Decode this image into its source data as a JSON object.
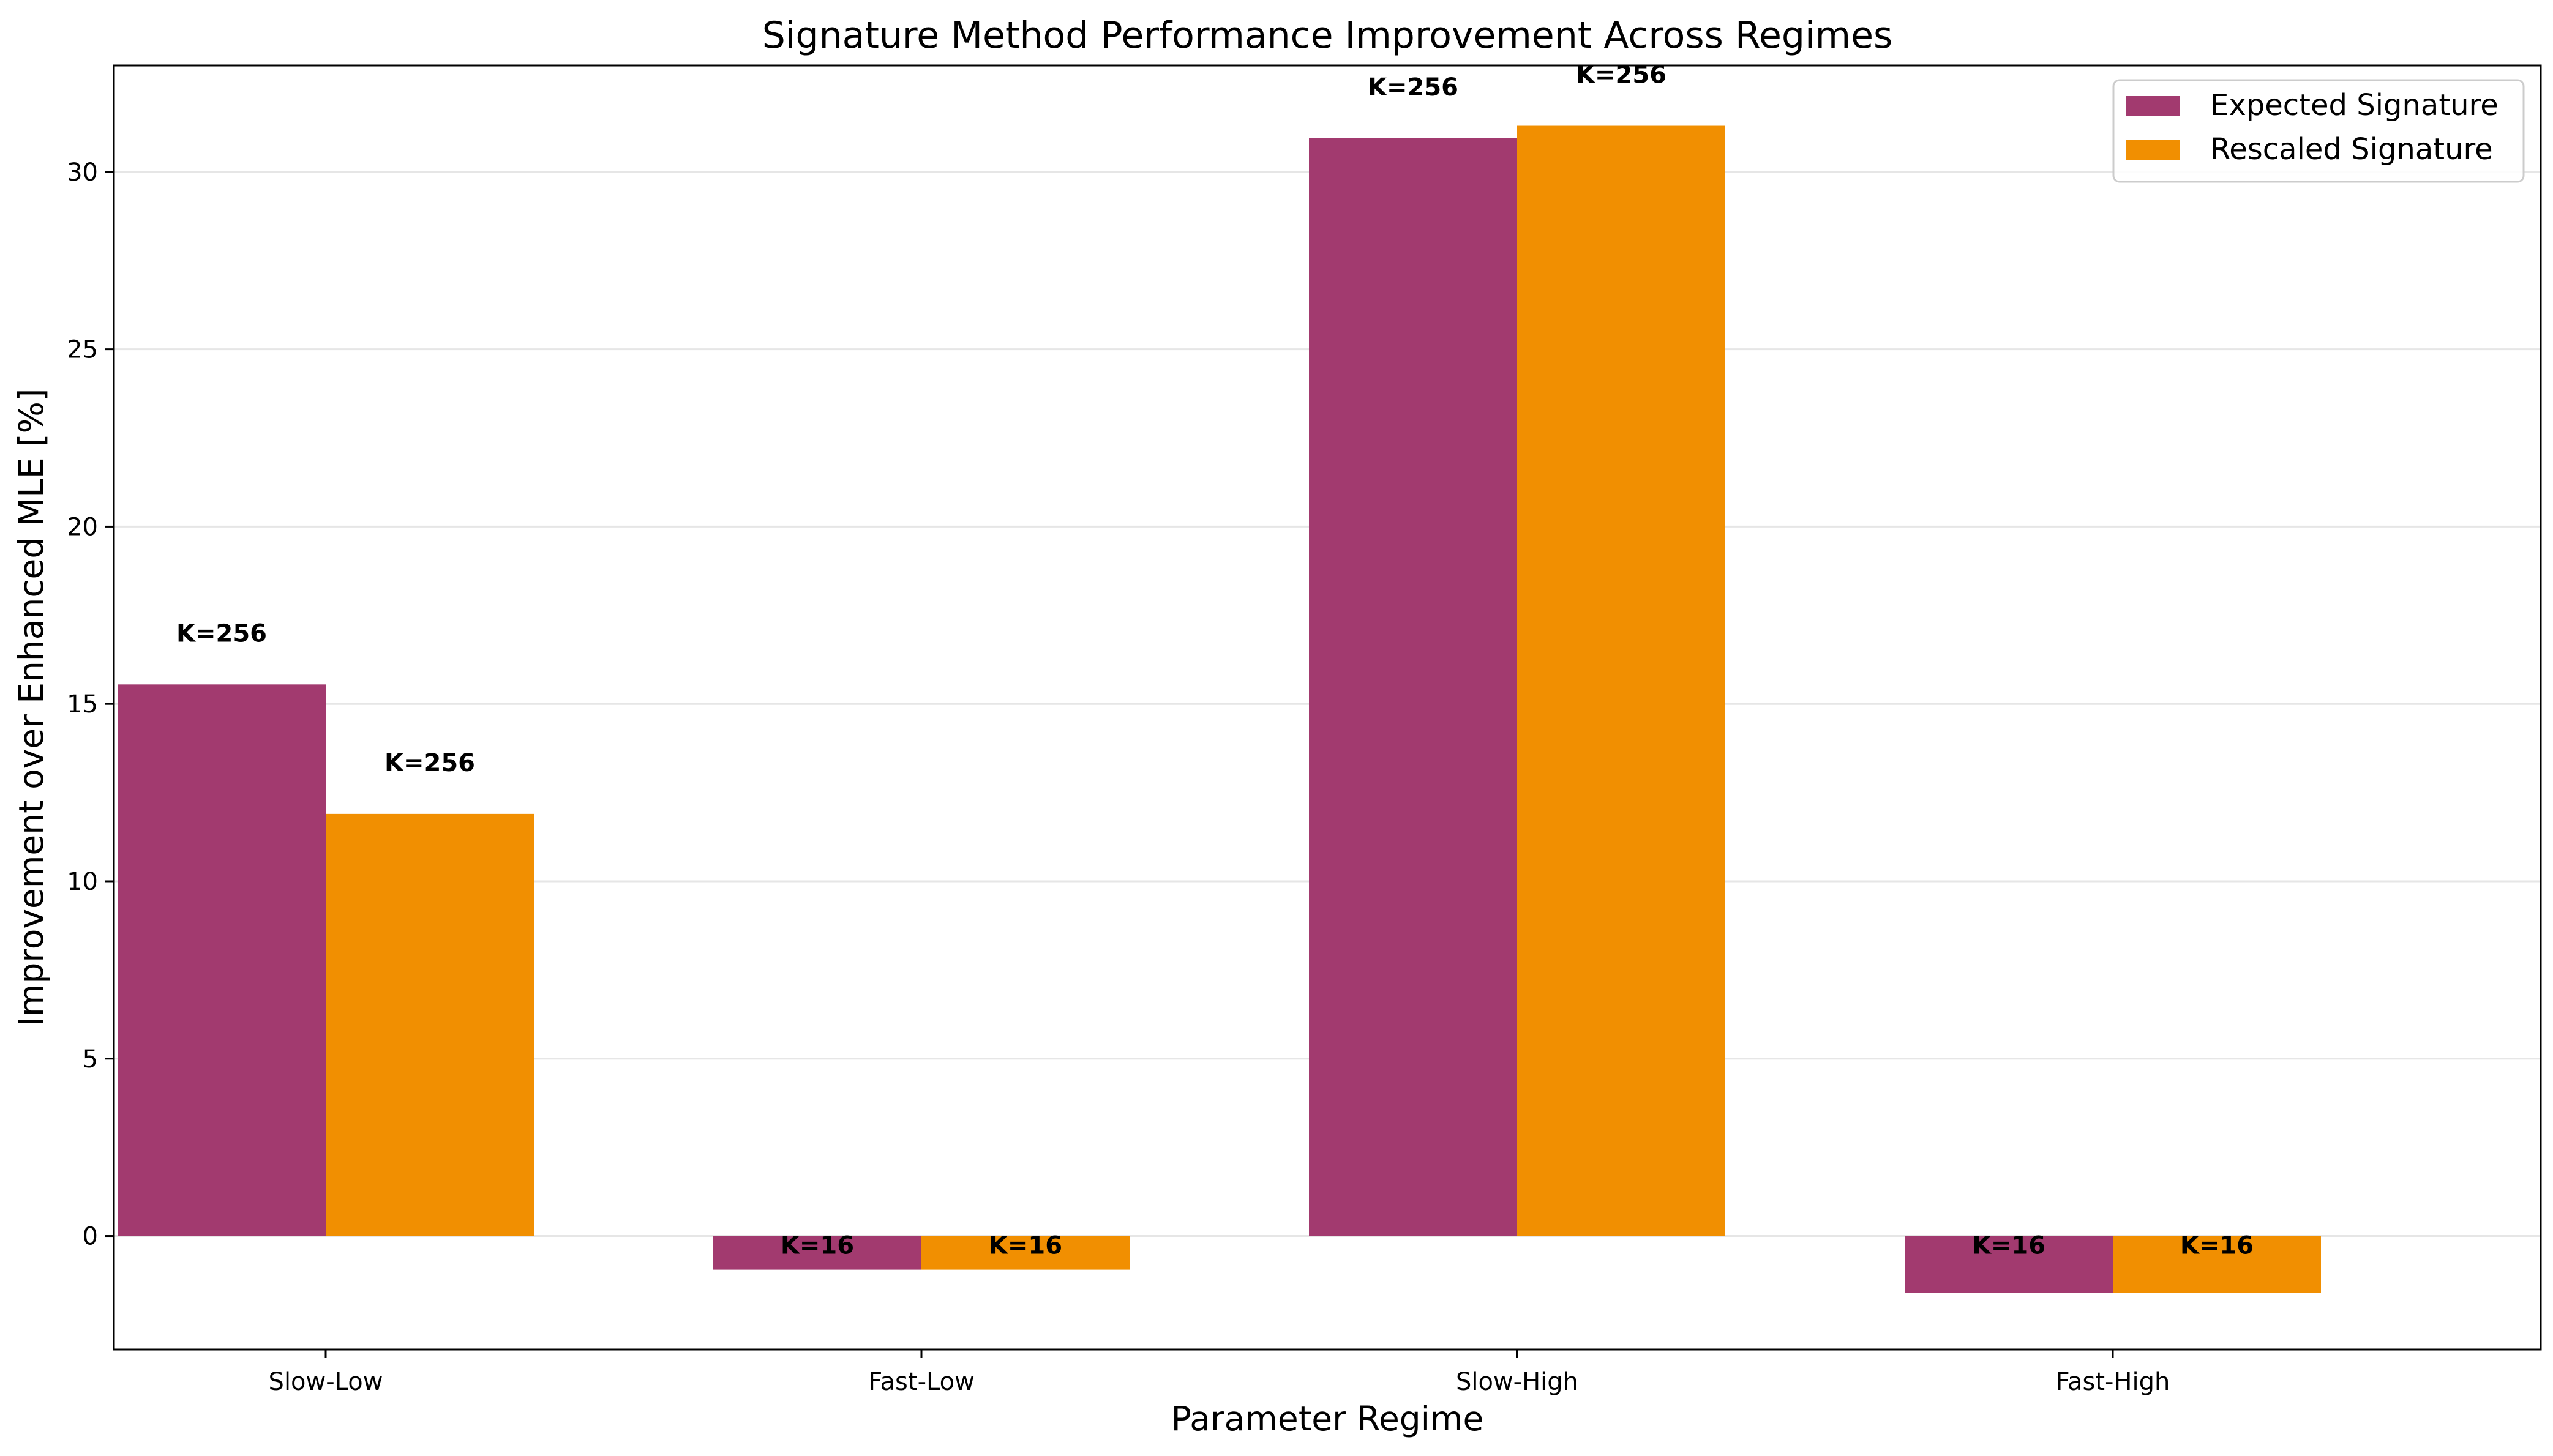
{
  "colors": {
    "expected": "#a23a6f",
    "rescaled": "#f18f01",
    "grid": "#e6e6e6",
    "axis": "#000000",
    "text": "#000000",
    "background": "#ffffff"
  },
  "chart_data": {
    "type": "bar",
    "title": "Signature Method Performance Improvement Across Regimes",
    "xlabel": "Parameter Regime",
    "ylabel": "Improvement over Enhanced MLE [%]",
    "categories": [
      "Slow-Low",
      "Fast-Low",
      "Slow-High",
      "Fast-High"
    ],
    "series": [
      {
        "name": "Expected Signature",
        "color_key": "expected",
        "values": [
          15.55,
          -0.95,
          30.95,
          -1.6
        ],
        "labels": [
          "K=256",
          "K=16",
          "K=256",
          "K=16"
        ]
      },
      {
        "name": "Rescaled Signature",
        "color_key": "rescaled",
        "values": [
          11.9,
          -0.95,
          31.3,
          -1.6
        ],
        "labels": [
          "K=256",
          "K=16",
          "K=256",
          "K=16"
        ]
      }
    ],
    "ylim": [
      -3.2,
      33
    ],
    "yticks": [
      0,
      5,
      10,
      15,
      20,
      25,
      30
    ],
    "grid": "y",
    "legend_position": "top-right"
  }
}
